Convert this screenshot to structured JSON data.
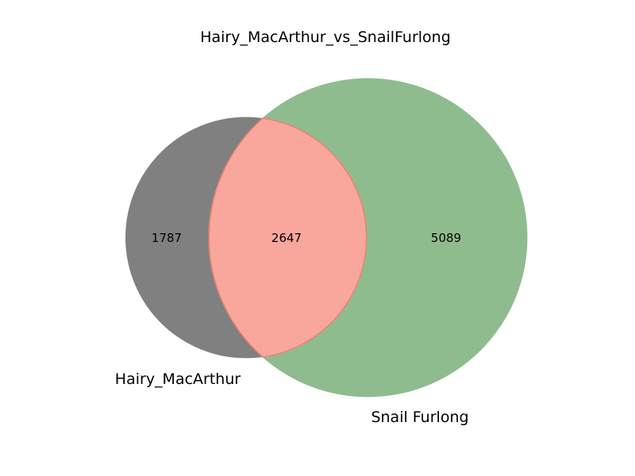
{
  "chart_data": {
    "type": "venn",
    "title": "Hairy_MacArthur_vs_SnailFurlong",
    "sets": [
      {
        "name": "Hairy_MacArthur",
        "only_count": 1787,
        "color": "#808080"
      },
      {
        "name": "Snail Furlong",
        "only_count": 5089,
        "color": "#8fbc8f"
      }
    ],
    "intersection": {
      "count": 2647,
      "color": "#f9a79d",
      "edge_color": "#e8826f"
    },
    "regions": [
      {
        "key": "left_only",
        "value": "1787"
      },
      {
        "key": "both",
        "value": "2647"
      },
      {
        "key": "right_only",
        "value": "5089"
      }
    ]
  }
}
